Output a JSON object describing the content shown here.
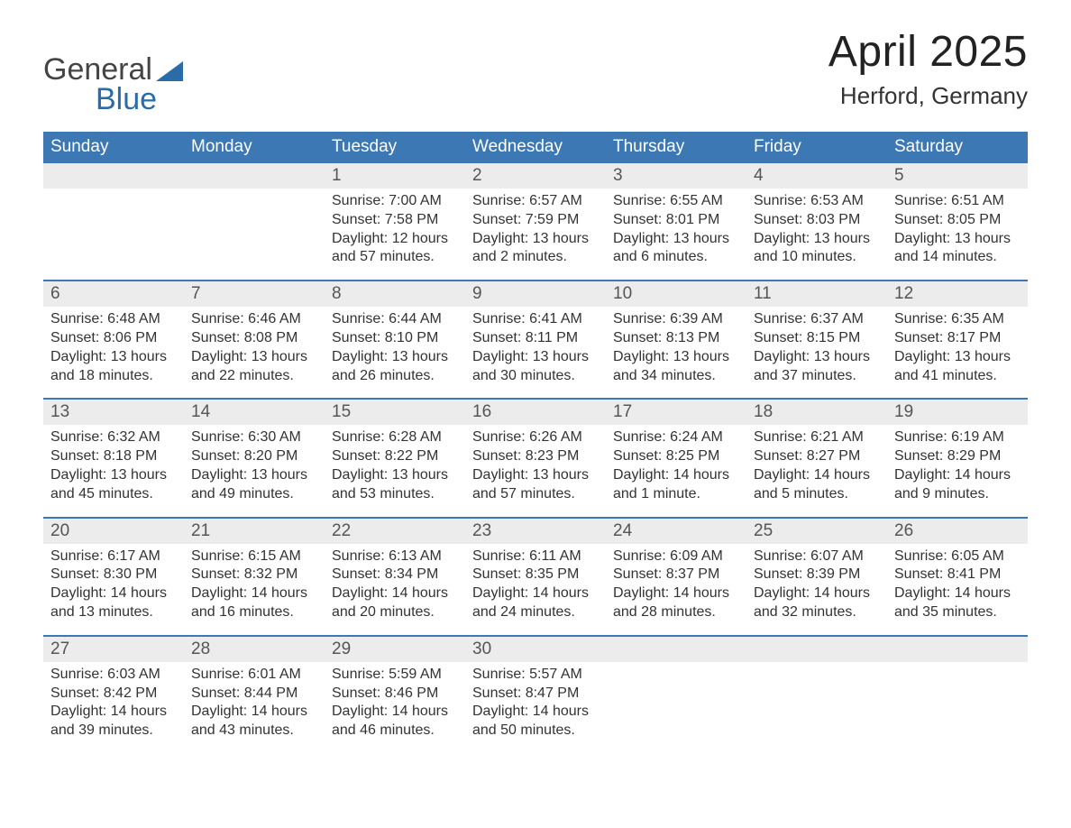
{
  "brand": {
    "word1": "General",
    "word2": "Blue",
    "accent_color": "#2b6ca8"
  },
  "title": "April 2025",
  "location": "Herford, Germany",
  "colors": {
    "header_bg": "#3c78b4",
    "header_text": "#ffffff",
    "strip_bg": "#ececec",
    "body_text": "#333333",
    "rule": "#3c78b4",
    "page_bg": "#ffffff"
  },
  "day_names": [
    "Sunday",
    "Monday",
    "Tuesday",
    "Wednesday",
    "Thursday",
    "Friday",
    "Saturday"
  ],
  "weeks": [
    [
      {
        "day": "",
        "sunrise": "",
        "sunset": "",
        "daylight1": "",
        "daylight2": ""
      },
      {
        "day": "",
        "sunrise": "",
        "sunset": "",
        "daylight1": "",
        "daylight2": ""
      },
      {
        "day": "1",
        "sunrise": "Sunrise: 7:00 AM",
        "sunset": "Sunset: 7:58 PM",
        "daylight1": "Daylight: 12 hours",
        "daylight2": "and 57 minutes."
      },
      {
        "day": "2",
        "sunrise": "Sunrise: 6:57 AM",
        "sunset": "Sunset: 7:59 PM",
        "daylight1": "Daylight: 13 hours",
        "daylight2": "and 2 minutes."
      },
      {
        "day": "3",
        "sunrise": "Sunrise: 6:55 AM",
        "sunset": "Sunset: 8:01 PM",
        "daylight1": "Daylight: 13 hours",
        "daylight2": "and 6 minutes."
      },
      {
        "day": "4",
        "sunrise": "Sunrise: 6:53 AM",
        "sunset": "Sunset: 8:03 PM",
        "daylight1": "Daylight: 13 hours",
        "daylight2": "and 10 minutes."
      },
      {
        "day": "5",
        "sunrise": "Sunrise: 6:51 AM",
        "sunset": "Sunset: 8:05 PM",
        "daylight1": "Daylight: 13 hours",
        "daylight2": "and 14 minutes."
      }
    ],
    [
      {
        "day": "6",
        "sunrise": "Sunrise: 6:48 AM",
        "sunset": "Sunset: 8:06 PM",
        "daylight1": "Daylight: 13 hours",
        "daylight2": "and 18 minutes."
      },
      {
        "day": "7",
        "sunrise": "Sunrise: 6:46 AM",
        "sunset": "Sunset: 8:08 PM",
        "daylight1": "Daylight: 13 hours",
        "daylight2": "and 22 minutes."
      },
      {
        "day": "8",
        "sunrise": "Sunrise: 6:44 AM",
        "sunset": "Sunset: 8:10 PM",
        "daylight1": "Daylight: 13 hours",
        "daylight2": "and 26 minutes."
      },
      {
        "day": "9",
        "sunrise": "Sunrise: 6:41 AM",
        "sunset": "Sunset: 8:11 PM",
        "daylight1": "Daylight: 13 hours",
        "daylight2": "and 30 minutes."
      },
      {
        "day": "10",
        "sunrise": "Sunrise: 6:39 AM",
        "sunset": "Sunset: 8:13 PM",
        "daylight1": "Daylight: 13 hours",
        "daylight2": "and 34 minutes."
      },
      {
        "day": "11",
        "sunrise": "Sunrise: 6:37 AM",
        "sunset": "Sunset: 8:15 PM",
        "daylight1": "Daylight: 13 hours",
        "daylight2": "and 37 minutes."
      },
      {
        "day": "12",
        "sunrise": "Sunrise: 6:35 AM",
        "sunset": "Sunset: 8:17 PM",
        "daylight1": "Daylight: 13 hours",
        "daylight2": "and 41 minutes."
      }
    ],
    [
      {
        "day": "13",
        "sunrise": "Sunrise: 6:32 AM",
        "sunset": "Sunset: 8:18 PM",
        "daylight1": "Daylight: 13 hours",
        "daylight2": "and 45 minutes."
      },
      {
        "day": "14",
        "sunrise": "Sunrise: 6:30 AM",
        "sunset": "Sunset: 8:20 PM",
        "daylight1": "Daylight: 13 hours",
        "daylight2": "and 49 minutes."
      },
      {
        "day": "15",
        "sunrise": "Sunrise: 6:28 AM",
        "sunset": "Sunset: 8:22 PM",
        "daylight1": "Daylight: 13 hours",
        "daylight2": "and 53 minutes."
      },
      {
        "day": "16",
        "sunrise": "Sunrise: 6:26 AM",
        "sunset": "Sunset: 8:23 PM",
        "daylight1": "Daylight: 13 hours",
        "daylight2": "and 57 minutes."
      },
      {
        "day": "17",
        "sunrise": "Sunrise: 6:24 AM",
        "sunset": "Sunset: 8:25 PM",
        "daylight1": "Daylight: 14 hours",
        "daylight2": "and 1 minute."
      },
      {
        "day": "18",
        "sunrise": "Sunrise: 6:21 AM",
        "sunset": "Sunset: 8:27 PM",
        "daylight1": "Daylight: 14 hours",
        "daylight2": "and 5 minutes."
      },
      {
        "day": "19",
        "sunrise": "Sunrise: 6:19 AM",
        "sunset": "Sunset: 8:29 PM",
        "daylight1": "Daylight: 14 hours",
        "daylight2": "and 9 minutes."
      }
    ],
    [
      {
        "day": "20",
        "sunrise": "Sunrise: 6:17 AM",
        "sunset": "Sunset: 8:30 PM",
        "daylight1": "Daylight: 14 hours",
        "daylight2": "and 13 minutes."
      },
      {
        "day": "21",
        "sunrise": "Sunrise: 6:15 AM",
        "sunset": "Sunset: 8:32 PM",
        "daylight1": "Daylight: 14 hours",
        "daylight2": "and 16 minutes."
      },
      {
        "day": "22",
        "sunrise": "Sunrise: 6:13 AM",
        "sunset": "Sunset: 8:34 PM",
        "daylight1": "Daylight: 14 hours",
        "daylight2": "and 20 minutes."
      },
      {
        "day": "23",
        "sunrise": "Sunrise: 6:11 AM",
        "sunset": "Sunset: 8:35 PM",
        "daylight1": "Daylight: 14 hours",
        "daylight2": "and 24 minutes."
      },
      {
        "day": "24",
        "sunrise": "Sunrise: 6:09 AM",
        "sunset": "Sunset: 8:37 PM",
        "daylight1": "Daylight: 14 hours",
        "daylight2": "and 28 minutes."
      },
      {
        "day": "25",
        "sunrise": "Sunrise: 6:07 AM",
        "sunset": "Sunset: 8:39 PM",
        "daylight1": "Daylight: 14 hours",
        "daylight2": "and 32 minutes."
      },
      {
        "day": "26",
        "sunrise": "Sunrise: 6:05 AM",
        "sunset": "Sunset: 8:41 PM",
        "daylight1": "Daylight: 14 hours",
        "daylight2": "and 35 minutes."
      }
    ],
    [
      {
        "day": "27",
        "sunrise": "Sunrise: 6:03 AM",
        "sunset": "Sunset: 8:42 PM",
        "daylight1": "Daylight: 14 hours",
        "daylight2": "and 39 minutes."
      },
      {
        "day": "28",
        "sunrise": "Sunrise: 6:01 AM",
        "sunset": "Sunset: 8:44 PM",
        "daylight1": "Daylight: 14 hours",
        "daylight2": "and 43 minutes."
      },
      {
        "day": "29",
        "sunrise": "Sunrise: 5:59 AM",
        "sunset": "Sunset: 8:46 PM",
        "daylight1": "Daylight: 14 hours",
        "daylight2": "and 46 minutes."
      },
      {
        "day": "30",
        "sunrise": "Sunrise: 5:57 AM",
        "sunset": "Sunset: 8:47 PM",
        "daylight1": "Daylight: 14 hours",
        "daylight2": "and 50 minutes."
      },
      {
        "day": "",
        "sunrise": "",
        "sunset": "",
        "daylight1": "",
        "daylight2": ""
      },
      {
        "day": "",
        "sunrise": "",
        "sunset": "",
        "daylight1": "",
        "daylight2": ""
      },
      {
        "day": "",
        "sunrise": "",
        "sunset": "",
        "daylight1": "",
        "daylight2": ""
      }
    ]
  ]
}
